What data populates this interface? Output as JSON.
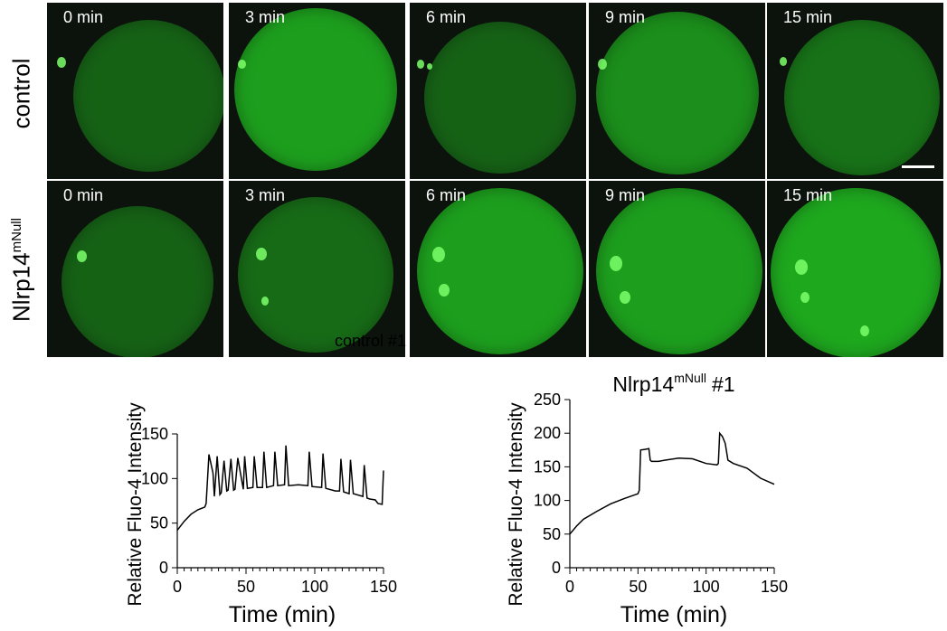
{
  "rows": [
    {
      "label": "control",
      "label_sup": "",
      "panels": [
        {
          "time": "0 min",
          "intensity": 0.45
        },
        {
          "time": "3 min",
          "intensity": 0.8
        },
        {
          "time": "6 min",
          "intensity": 0.45
        },
        {
          "time": "9 min",
          "intensity": 0.7
        },
        {
          "time": "15 min",
          "intensity": 0.55
        }
      ]
    },
    {
      "label": "Nlrp14",
      "label_sup": "mNull",
      "panels": [
        {
          "time": "0 min",
          "intensity": 0.45
        },
        {
          "time": "3 min",
          "intensity": 0.5
        },
        {
          "time": "6 min",
          "intensity": 0.8
        },
        {
          "time": "9 min",
          "intensity": 0.8
        },
        {
          "time": "15 min",
          "intensity": 0.85
        }
      ]
    }
  ],
  "colors": {
    "fluorescence": "#22c322",
    "background": "#0c120c"
  },
  "stray_label": "control #1",
  "chart_data": [
    {
      "type": "line",
      "title": "",
      "xlabel": "Time (min)",
      "ylabel": "Relative Fluo-4 Intensity",
      "xlim": [
        0,
        150
      ],
      "ylim": [
        0,
        150
      ],
      "xticks": [
        0,
        50,
        100,
        150
      ],
      "yticks": [
        0,
        50,
        100,
        150
      ],
      "series": [
        {
          "x": [
            0,
            5,
            10,
            15,
            20,
            21,
            23,
            26,
            27,
            29,
            31,
            32,
            34,
            36,
            37,
            39,
            41,
            42,
            44,
            48,
            49,
            51,
            55,
            56,
            58,
            62,
            63,
            65,
            70,
            71,
            73,
            78,
            79,
            81,
            88,
            95,
            96,
            98,
            105,
            106,
            108,
            115,
            118,
            119,
            121,
            125,
            126,
            128,
            135,
            136,
            138,
            140,
            144,
            146,
            149,
            150
          ],
          "y": [
            42,
            52,
            60,
            65,
            68,
            72,
            127,
            106,
            80,
            125,
            82,
            84,
            120,
            86,
            87,
            122,
            87,
            88,
            123,
            88,
            125,
            89,
            90,
            125,
            90,
            90,
            130,
            90,
            92,
            130,
            92,
            93,
            137,
            92,
            93,
            92,
            130,
            91,
            90,
            128,
            89,
            86,
            86,
            122,
            85,
            83,
            121,
            83,
            80,
            115,
            78,
            77,
            76,
            72,
            71,
            109
          ]
        }
      ]
    },
    {
      "type": "line",
      "title": "Nlrp14",
      "title_sup": "mNull",
      "title_suffix": "#1",
      "xlabel": "Time (min)",
      "ylabel": "Relative Fluo-4 Intensity",
      "xlim": [
        0,
        150
      ],
      "ylim": [
        0,
        250
      ],
      "xticks": [
        0,
        50,
        100,
        150
      ],
      "yticks": [
        0,
        50,
        100,
        150,
        200,
        250
      ],
      "series": [
        {
          "x": [
            0,
            5,
            10,
            20,
            30,
            40,
            50,
            51,
            52,
            55,
            58,
            59,
            60,
            65,
            70,
            80,
            90,
            100,
            108,
            109,
            110,
            112,
            114,
            116,
            120,
            130,
            140,
            150
          ],
          "y": [
            50,
            62,
            72,
            84,
            95,
            103,
            110,
            115,
            175,
            176,
            177,
            160,
            158,
            158,
            160,
            163,
            162,
            155,
            153,
            155,
            200,
            195,
            185,
            160,
            155,
            148,
            133,
            124
          ]
        }
      ]
    }
  ]
}
